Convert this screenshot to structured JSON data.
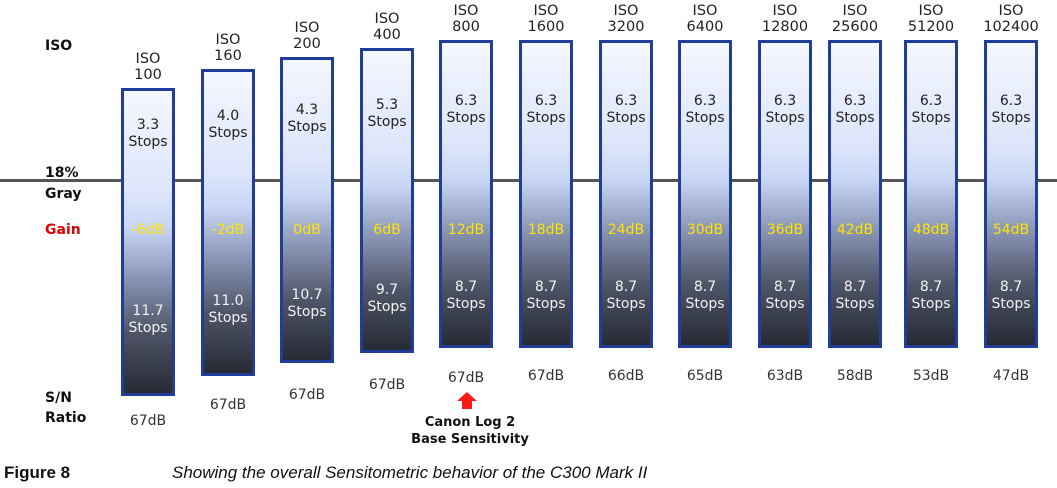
{
  "row_labels": {
    "iso": "ISO",
    "gray_line": "18%",
    "gray_line_2": "Gray",
    "gain": "Gain",
    "sn": "S/N",
    "sn_2": "Ratio"
  },
  "columns": [
    {
      "iso_1": "ISO",
      "iso_2": "100",
      "top_1": "3.3",
      "top_2": "Stops",
      "gain": "-6dB",
      "bottom_1": "11.7",
      "bottom_2": "Stops",
      "sn": "67dB"
    },
    {
      "iso_1": "ISO",
      "iso_2": "160",
      "top_1": "4.0",
      "top_2": "Stops",
      "gain": "-2dB",
      "bottom_1": "11.0",
      "bottom_2": "Stops",
      "sn": "67dB"
    },
    {
      "iso_1": "ISO",
      "iso_2": "200",
      "top_1": "4.3",
      "top_2": "Stops",
      "gain": "0dB",
      "bottom_1": "10.7",
      "bottom_2": "Stops",
      "sn": "67dB"
    },
    {
      "iso_1": "ISO",
      "iso_2": "400",
      "top_1": "5.3",
      "top_2": "Stops",
      "gain": "6dB",
      "bottom_1": "9.7",
      "bottom_2": "Stops",
      "sn": "67dB"
    },
    {
      "iso_1": "ISO",
      "iso_2": "800",
      "top_1": "6.3",
      "top_2": "Stops",
      "gain": "12dB",
      "bottom_1": "8.7",
      "bottom_2": "Stops",
      "sn": "67dB"
    },
    {
      "iso_1": "ISO",
      "iso_2": "1600",
      "top_1": "6.3",
      "top_2": "Stops",
      "gain": "18dB",
      "bottom_1": "8.7",
      "bottom_2": "Stops",
      "sn": "67dB"
    },
    {
      "iso_1": "ISO",
      "iso_2": "3200",
      "top_1": "6.3",
      "top_2": "Stops",
      "gain": "24dB",
      "bottom_1": "8.7",
      "bottom_2": "Stops",
      "sn": "66dB"
    },
    {
      "iso_1": "ISO",
      "iso_2": "6400",
      "top_1": "6.3",
      "top_2": "Stops",
      "gain": "30dB",
      "bottom_1": "8.7",
      "bottom_2": "Stops",
      "sn": "65dB"
    },
    {
      "iso_1": "ISO",
      "iso_2": "12800",
      "top_1": "6.3",
      "top_2": "Stops",
      "gain": "36dB",
      "bottom_1": "8.7",
      "bottom_2": "Stops",
      "sn": "63dB"
    },
    {
      "iso_1": "ISO",
      "iso_2": "25600",
      "top_1": "6.3",
      "top_2": "Stops",
      "gain": "42dB",
      "bottom_1": "8.7",
      "bottom_2": "Stops",
      "sn": "58dB"
    },
    {
      "iso_1": "ISO",
      "iso_2": "51200",
      "top_1": "6.3",
      "top_2": "Stops",
      "gain": "48dB",
      "bottom_1": "8.7",
      "bottom_2": "Stops",
      "sn": "53dB"
    },
    {
      "iso_1": "ISO",
      "iso_2": "102400",
      "top_1": "6.3",
      "top_2": "Stops",
      "gain": "54dB",
      "bottom_1": "8.7",
      "bottom_2": "Stops",
      "sn": "47dB"
    }
  ],
  "base_note": {
    "line_1": "Canon Log 2",
    "line_2": "Base Sensitivity"
  },
  "figure": {
    "number": "Figure 8",
    "caption": "Showing the overall Sensitometric behavior of the C300 Mark II"
  },
  "colors": {
    "bar_border": "#1f3d99",
    "gain_label": "#e00000",
    "gain_values": "#ffe400",
    "arrow": "#ff1a1a"
  }
}
